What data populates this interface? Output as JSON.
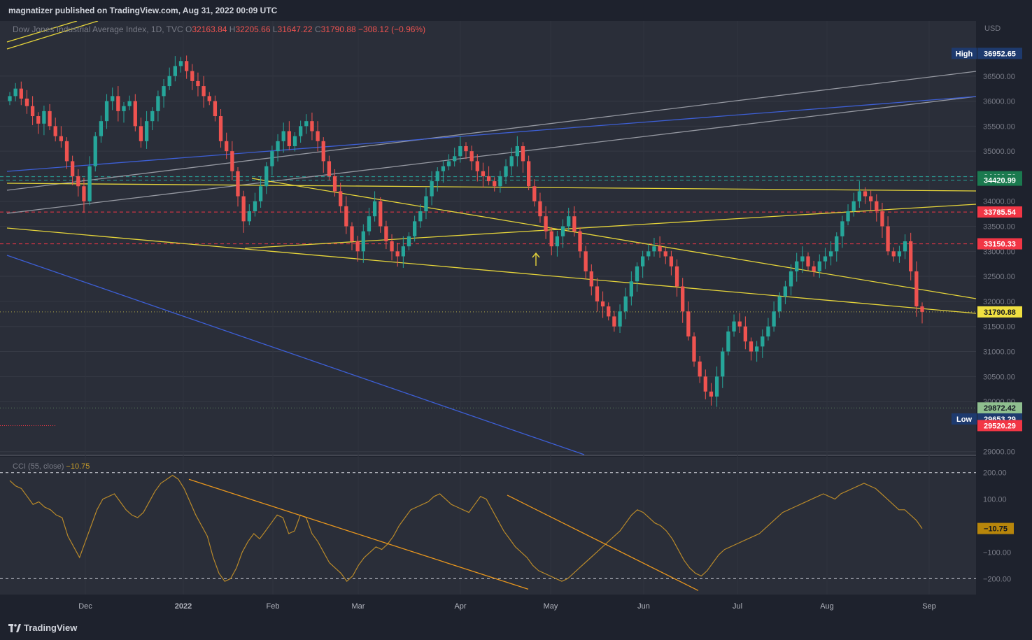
{
  "header": {
    "published": "magnatizer published on TradingView.com, Aug 31, 2022 00:09 UTC"
  },
  "footer": {
    "brand": "TradingView"
  },
  "legend": {
    "symbol": "Dow Jones Industrial Average Index, 1D, TVC",
    "open_label": "O",
    "open": "32163.84",
    "high_label": "H",
    "high": "32205.66",
    "low_label": "L",
    "low": "31647.22",
    "close_label": "C",
    "close": "31790.88",
    "change": "−308.12 (−0.96%)"
  },
  "cci_legend": {
    "label": "CCI (55, close)",
    "value": "−10.75"
  },
  "colors": {
    "up": "#26a69a",
    "down": "#ef5350",
    "trendline": "#e5d43a",
    "cci": "#b8892a",
    "background": "#2a2e39"
  },
  "chart_data": [
    {
      "type": "candlestick",
      "currency": "USD",
      "x_labels": [
        "Dec",
        "2022",
        "Feb",
        "Mar",
        "Apr",
        "May",
        "Jun",
        "Jul",
        "Aug",
        "Sep"
      ],
      "y_ticks": [
        "36500.00",
        "36000.00",
        "35500.00",
        "35000.00",
        "34500.00",
        "34000.00",
        "33500.00",
        "33000.00",
        "32500.00",
        "32000.00",
        "31500.00",
        "31000.00",
        "30500.00",
        "30000.00",
        "29000.00"
      ],
      "ylim": [
        28940,
        37600
      ],
      "price_labels": [
        {
          "text": "36952.65",
          "tag": "High",
          "value": 36952.65,
          "color": "#1e3a6e"
        },
        {
          "text": "34490.56",
          "value": 34490.56,
          "color": "#1b7a4f"
        },
        {
          "text": "34420.99",
          "value": 34420.99,
          "color": "#1b7a4f"
        },
        {
          "text": "33785.54",
          "value": 33785.54,
          "color": "#f23645"
        },
        {
          "text": "33150.33",
          "value": 33150.33,
          "color": "#f23645"
        },
        {
          "text": "31790.88",
          "value": 31790.88,
          "color": "#f0e041"
        },
        {
          "text": "29872.42",
          "value": 29872.42,
          "color": "#8fbf8f"
        },
        {
          "text": "29653.29",
          "tag": "Low",
          "value": 29653.29,
          "color": "#1e3a6e"
        },
        {
          "text": "29520.29",
          "value": 29520.29,
          "color": "#f23645"
        }
      ],
      "candles_close": [
        36100,
        36250,
        36050,
        35900,
        35700,
        35550,
        35800,
        35500,
        35300,
        35200,
        34800,
        34500,
        34300,
        34000,
        34700,
        35300,
        35600,
        36000,
        36100,
        35800,
        35900,
        36000,
        35500,
        35200,
        35600,
        35800,
        36100,
        36300,
        36500,
        36700,
        36800,
        36600,
        36400,
        36300,
        36100,
        36000,
        35700,
        35200,
        35000,
        34600,
        34100,
        33600,
        33800,
        34000,
        34300,
        34700,
        35000,
        35200,
        35400,
        35100,
        35300,
        35500,
        35600,
        35400,
        35200,
        34800,
        34500,
        34200,
        33900,
        33500,
        33200,
        33000,
        33400,
        33700,
        34000,
        33500,
        33200,
        33000,
        32900,
        33100,
        33300,
        33600,
        33800,
        34100,
        34400,
        34600,
        34700,
        34800,
        34900,
        35100,
        35000,
        34800,
        34600,
        34500,
        34400,
        34300,
        34500,
        34700,
        34900,
        35100,
        34800,
        34300,
        34000,
        33700,
        33400,
        33100,
        33300,
        33500,
        33700,
        33400,
        33000,
        32600,
        32300,
        32000,
        31900,
        31700,
        31500,
        31800,
        32100,
        32400,
        32700,
        32900,
        33000,
        33100,
        33000,
        32900,
        32700,
        32300,
        31800,
        31300,
        30800,
        30500,
        30200,
        30100,
        30500,
        31000,
        31400,
        31600,
        31500,
        31200,
        31000,
        31100,
        31300,
        31500,
        31800,
        32100,
        32300,
        32600,
        32800,
        32900,
        32700,
        32600,
        32800,
        32900,
        33000,
        33300,
        33600,
        33800,
        34000,
        34200,
        34100,
        34000,
        33800,
        33500,
        33000,
        32900,
        33000,
        33200,
        32600,
        31900,
        31790.88
      ],
      "annotations": [
        {
          "type": "hline",
          "value": 34490.56,
          "color": "#26a69a",
          "style": "dashed"
        },
        {
          "type": "hline",
          "value": 34420.99,
          "color": "#26a69a",
          "style": "dashed"
        },
        {
          "type": "hline",
          "value": 33785.54,
          "color": "#f23645",
          "style": "dashed"
        },
        {
          "type": "hline",
          "value": 33150.33,
          "color": "#f23645",
          "style": "dashed"
        }
      ]
    },
    {
      "type": "line",
      "name": "CCI (55, close)",
      "y_ticks": [
        "200.00",
        "100.00",
        "−100.00",
        "−200.00"
      ],
      "ylim": [
        -260,
        260
      ],
      "hlines": [
        200,
        -200
      ],
      "current_value": -10.75,
      "current_label": "−10.75",
      "values": [
        170,
        150,
        140,
        110,
        80,
        90,
        70,
        60,
        40,
        30,
        -40,
        -80,
        -120,
        -60,
        0,
        60,
        100,
        110,
        120,
        90,
        60,
        40,
        30,
        50,
        90,
        130,
        160,
        175,
        190,
        175,
        140,
        90,
        40,
        0,
        -40,
        -120,
        -180,
        -210,
        -200,
        -160,
        -100,
        -60,
        -30,
        -50,
        -20,
        10,
        40,
        30,
        -30,
        -20,
        40,
        30,
        -30,
        -60,
        -100,
        -140,
        -160,
        -180,
        -210,
        -190,
        -150,
        -120,
        -100,
        -80,
        -90,
        -70,
        -40,
        0,
        30,
        60,
        70,
        80,
        90,
        110,
        120,
        100,
        80,
        70,
        60,
        50,
        80,
        110,
        100,
        60,
        20,
        -20,
        -50,
        -80,
        -100,
        -120,
        -150,
        -170,
        -180,
        -190,
        -200,
        -210,
        -200,
        -180,
        -160,
        -140,
        -120,
        -100,
        -80,
        -60,
        -40,
        -20,
        10,
        40,
        60,
        50,
        30,
        10,
        0,
        -20,
        -50,
        -90,
        -130,
        -160,
        -180,
        -190,
        -170,
        -140,
        -110,
        -90,
        -80,
        -70,
        -60,
        -50,
        -40,
        -30,
        -10,
        10,
        30,
        50,
        60,
        70,
        80,
        90,
        100,
        110,
        120,
        110,
        100,
        120,
        130,
        140,
        150,
        160,
        150,
        140,
        120,
        100,
        80,
        60,
        60,
        40,
        20,
        -10.75
      ]
    }
  ]
}
